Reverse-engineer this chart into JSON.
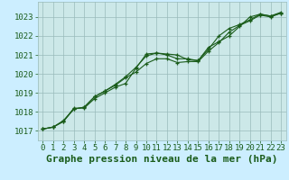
{
  "title": "Graphe pression niveau de la mer (hPa)",
  "fig_bg_color": "#cceeff",
  "plot_bg_color": "#cce8e8",
  "grid_color": "#99bbbb",
  "line_color": "#1a5c1a",
  "xlim": [
    -0.5,
    23.5
  ],
  "ylim": [
    1016.5,
    1023.8
  ],
  "yticks": [
    1017,
    1018,
    1019,
    1020,
    1021,
    1022,
    1023
  ],
  "xticks": [
    0,
    1,
    2,
    3,
    4,
    5,
    6,
    7,
    8,
    9,
    10,
    11,
    12,
    13,
    14,
    15,
    16,
    17,
    18,
    19,
    20,
    21,
    22,
    23
  ],
  "series": [
    [
      1017.1,
      1017.2,
      1017.5,
      1018.2,
      1018.2,
      1018.7,
      1019.0,
      1019.3,
      1019.5,
      1020.3,
      1021.05,
      1021.1,
      1021.0,
      1020.8,
      1020.8,
      1020.7,
      1021.4,
      1021.7,
      1022.0,
      1022.5,
      1023.0,
      1023.15,
      1023.05,
      1023.2
    ],
    [
      1017.1,
      1017.2,
      1017.5,
      1018.15,
      1018.25,
      1018.8,
      1019.1,
      1019.45,
      1019.85,
      1020.35,
      1020.95,
      1021.1,
      1021.05,
      1021.0,
      1020.75,
      1020.7,
      1021.3,
      1022.0,
      1022.4,
      1022.6,
      1022.85,
      1023.15,
      1023.05,
      1023.25
    ],
    [
      1017.1,
      1017.2,
      1017.55,
      1018.15,
      1018.25,
      1018.8,
      1019.1,
      1019.4,
      1019.8,
      1020.1,
      1020.55,
      1020.8,
      1020.8,
      1020.6,
      1020.65,
      1020.65,
      1021.2,
      1021.65,
      1022.2,
      1022.55,
      1022.8,
      1023.1,
      1023.0,
      1023.2
    ]
  ],
  "title_fontsize": 8,
  "tick_fontsize": 6.5
}
